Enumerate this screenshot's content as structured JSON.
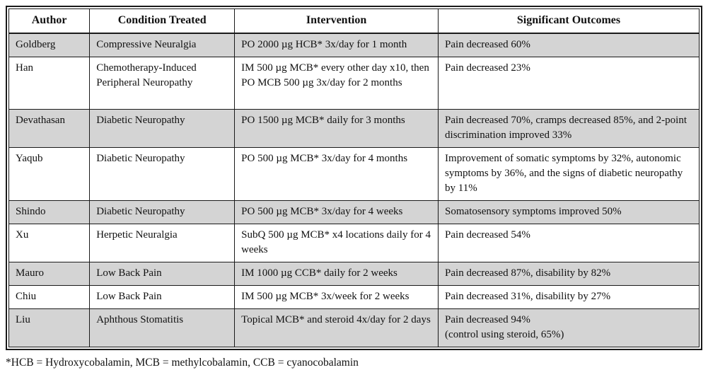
{
  "table": {
    "columns": [
      "Author",
      "Condition Treated",
      "Intervention",
      "Significant Outcomes"
    ],
    "rows": [
      {
        "author": "Goldberg",
        "condition": "Compressive Neuralgia",
        "intervention": "PO 2000 µg HCB* 3x/day for 1 month",
        "outcomes": "Pain decreased 60%",
        "shaded": true,
        "height": "short"
      },
      {
        "author": "Han",
        "condition": "Chemotherapy-Induced Peripheral Neuropathy",
        "intervention": "IM 500 µg MCB* every other day x10, then PO MCB 500 µg 3x/day for 2 months",
        "outcomes": "Pain decreased 23%",
        "shaded": false,
        "height": "tall"
      },
      {
        "author": "Devathasan",
        "condition": "Diabetic Neuropathy",
        "intervention": "PO 1500 µg MCB* daily for 3 months",
        "outcomes": "Pain decreased 70%, cramps decreased 85%, and 2-point discrimination improved 33%",
        "shaded": true,
        "height": "mid"
      },
      {
        "author": "Yaqub",
        "condition": "Diabetic Neuropathy",
        "intervention": "PO 500 µg MCB* 3x/day for 4 months",
        "outcomes": "Improvement of somatic symptoms by 32%, autonomic symptoms by 36%, and the signs of diabetic neuropathy by 11%",
        "shaded": false,
        "height": "tall"
      },
      {
        "author": "Shindo",
        "condition": "Diabetic Neuropathy",
        "intervention": "PO 500 µg MCB* 3x/day for 4 weeks",
        "outcomes": "Somatosensory symptoms improved 50%",
        "shaded": true,
        "height": "short"
      },
      {
        "author": "Xu",
        "condition": "Herpetic Neuralgia",
        "intervention": "SubQ 500 µg MCB* x4 locations daily for 4 weeks",
        "outcomes": "Pain decreased 54%",
        "shaded": false,
        "height": "mid"
      },
      {
        "author": "Mauro",
        "condition": "Low Back Pain",
        "intervention": "IM 1000 µg CCB* daily for 2 weeks",
        "outcomes": "Pain decreased 87%, disability by 82%",
        "shaded": true,
        "height": "short"
      },
      {
        "author": "Chiu",
        "condition": "Low Back Pain",
        "intervention": "IM 500 µg MCB* 3x/week for 2 weeks",
        "outcomes": "Pain decreased 31%, disability by 27%",
        "shaded": false,
        "height": "short"
      },
      {
        "author": "Liu",
        "condition": "Aphthous Stomatitis",
        "intervention": "Topical MCB* and steroid 4x/day for 2 days",
        "outcomes": "Pain decreased 94%\n(control using steroid, 65%)",
        "shaded": true,
        "height": "mid"
      }
    ]
  },
  "footnote": "*HCB = Hydroxycobalamin, MCB = methylcobalamin, CCB = cyanocobalamin",
  "colors": {
    "row_shade": "#d4d4d4",
    "border": "#1a1a1a",
    "text": "#111111",
    "header_background": "#ffffff"
  }
}
